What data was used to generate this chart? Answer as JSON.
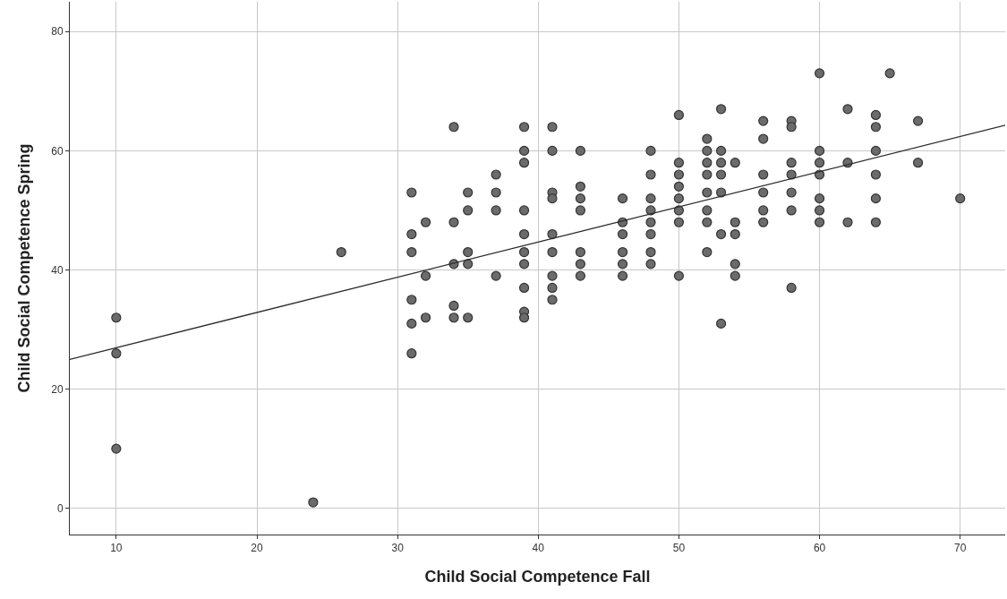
{
  "chart_data": {
    "type": "scatter",
    "xlabel": "Child Social Competence Fall",
    "ylabel": "Child Social Competence Spring",
    "xlim": [
      6.7,
      73.2
    ],
    "ylim": [
      -4.4,
      85
    ],
    "xticks": [
      10,
      20,
      30,
      40,
      50,
      60,
      70
    ],
    "yticks": [
      0,
      20,
      40,
      60,
      80
    ],
    "grid": true,
    "series": [
      {
        "marker": "circle",
        "color": "#6b6b6b",
        "x": [
          10,
          10,
          10,
          24,
          26,
          31,
          31,
          31,
          31,
          31,
          31,
          32,
          32,
          32,
          34,
          34,
          34,
          34,
          34,
          35,
          35,
          35,
          35,
          35,
          37,
          37,
          37,
          37,
          39,
          39,
          39,
          39,
          39,
          39,
          39,
          39,
          39,
          39,
          41,
          41,
          41,
          41,
          41,
          41,
          41,
          41,
          41,
          43,
          43,
          43,
          43,
          43,
          43,
          43,
          46,
          46,
          46,
          46,
          46,
          46,
          48,
          48,
          48,
          48,
          48,
          48,
          48,
          48,
          50,
          50,
          50,
          50,
          50,
          50,
          50,
          50,
          52,
          52,
          52,
          52,
          52,
          52,
          52,
          52,
          53,
          53,
          53,
          53,
          53,
          53,
          53,
          54,
          54,
          54,
          54,
          54,
          56,
          56,
          56,
          56,
          56,
          56,
          58,
          58,
          58,
          58,
          58,
          58,
          58,
          60,
          60,
          60,
          60,
          60,
          60,
          60,
          62,
          62,
          62,
          64,
          64,
          64,
          64,
          64,
          64,
          65,
          67,
          67,
          70
        ],
        "values": [
          32,
          26,
          10,
          1,
          43,
          53,
          46,
          43,
          35,
          31,
          26,
          48,
          39,
          32,
          64,
          48,
          41,
          34,
          32,
          53,
          50,
          43,
          41,
          32,
          56,
          53,
          50,
          39,
          64,
          60,
          58,
          50,
          46,
          43,
          41,
          37,
          33,
          32,
          64,
          60,
          53,
          52,
          46,
          43,
          39,
          37,
          35,
          60,
          54,
          52,
          50,
          43,
          41,
          39,
          52,
          48,
          46,
          43,
          41,
          39,
          60,
          56,
          52,
          50,
          48,
          46,
          43,
          41,
          66,
          58,
          56,
          54,
          52,
          50,
          48,
          39,
          62,
          60,
          58,
          56,
          53,
          50,
          48,
          43,
          67,
          60,
          58,
          56,
          53,
          46,
          31,
          58,
          48,
          46,
          41,
          39,
          65,
          62,
          56,
          53,
          50,
          48,
          65,
          64,
          58,
          56,
          53,
          50,
          37,
          73,
          60,
          58,
          56,
          52,
          50,
          48,
          67,
          58,
          48,
          66,
          64,
          60,
          56,
          52,
          48,
          73,
          65,
          58,
          52
        ]
      },
      {
        "type": "line",
        "marker": "none",
        "color": "#2b2b2b",
        "line_style": "solid",
        "x": [
          6.7,
          73.2
        ],
        "values": [
          25,
          64.3
        ]
      }
    ]
  }
}
